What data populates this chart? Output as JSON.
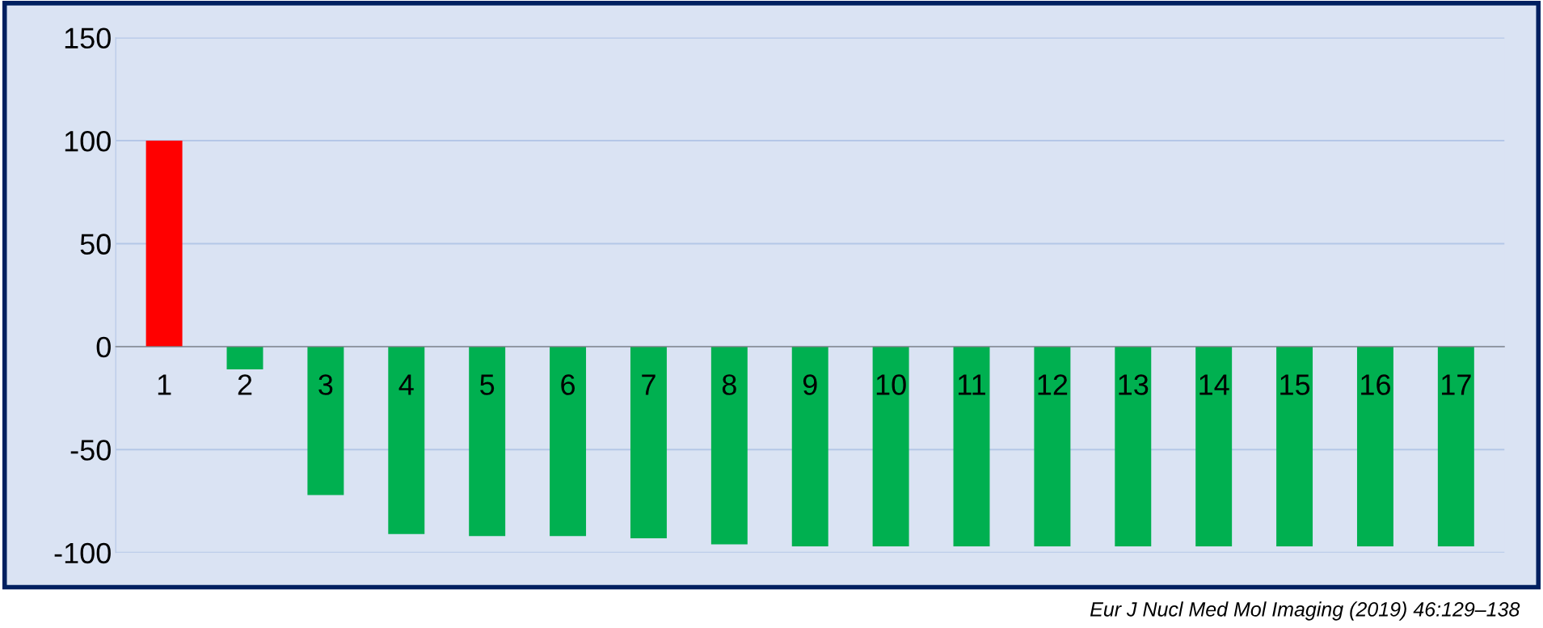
{
  "chart_data": {
    "type": "bar",
    "categories": [
      "1",
      "2",
      "3",
      "4",
      "5",
      "6",
      "7",
      "8",
      "9",
      "10",
      "11",
      "12",
      "13",
      "14",
      "15",
      "16",
      "17"
    ],
    "values": [
      100,
      -11,
      -72,
      -91,
      -92,
      -92,
      -93,
      -96,
      -97,
      -97,
      -97,
      -97,
      -97,
      -97,
      -97,
      -97,
      -97
    ],
    "colors": [
      "#ff0000",
      "#00b050",
      "#00b050",
      "#00b050",
      "#00b050",
      "#00b050",
      "#00b050",
      "#00b050",
      "#00b050",
      "#00b050",
      "#00b050",
      "#00b050",
      "#00b050",
      "#00b050",
      "#00b050",
      "#00b050",
      "#00b050"
    ],
    "ylim": [
      -100,
      150
    ],
    "yticks": [
      -100,
      -50,
      0,
      50,
      100,
      150
    ],
    "grid": "y",
    "annotations": [
      "Eur J Nucl Med Mol Imaging (2019) 46:129–138"
    ]
  }
}
